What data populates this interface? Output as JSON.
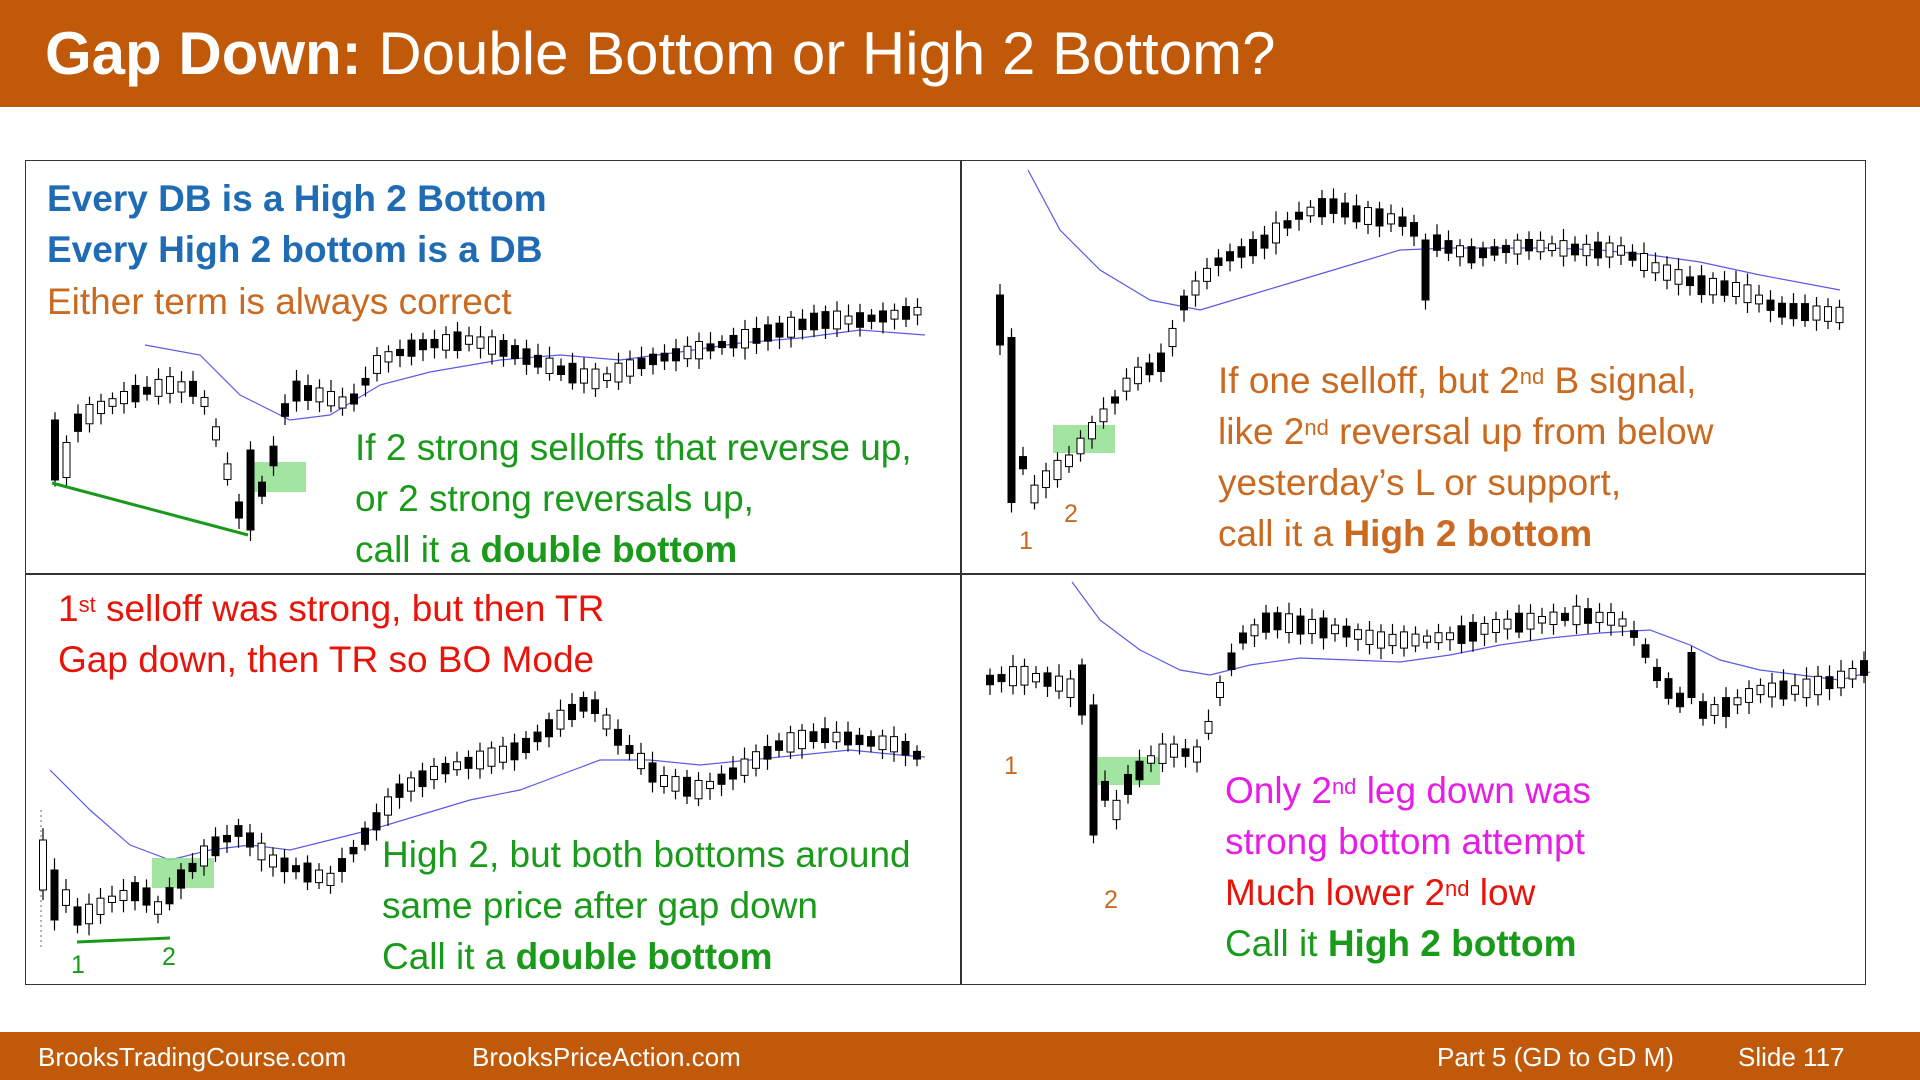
{
  "title": {
    "bold": "Gap Down:",
    "rest": " Double Bottom or High 2 Bottom?"
  },
  "panel_tl": {
    "line1": "Every DB is a High 2 Bottom",
    "line2": "Every High 2 bottom is a DB",
    "line3": "Either term is always correct",
    "c1": "If 2 strong selloffs that reverse up,",
    "c2": "or 2 strong reversals up,",
    "c3_pre": "call it a ",
    "c3_bold": "double bottom"
  },
  "panel_tr": {
    "l1_pre": "If one selloff, but 2",
    "l1_sup": "nd",
    "l1_post": " B signal,",
    "l2_pre": "like 2",
    "l2_sup": "nd",
    "l2_post": " reversal up from below",
    "l3": "yesterday’s L or support,",
    "l4_pre": "call it a ",
    "l4_bold": "High 2 bottom",
    "label1": "1",
    "label2": "2"
  },
  "panel_bl": {
    "r1_pre": "1",
    "r1_sup": "st",
    "r1_post": " selloff was strong, but then TR",
    "r2": "Gap down, then TR so BO Mode",
    "g1": "High 2, but both bottoms around",
    "g2": "same price after gap down",
    "g3_pre": "Call it a ",
    "g3_bold": "double bottom",
    "label1": "1",
    "label2": "2"
  },
  "panel_br": {
    "m1_pre": "Only 2",
    "m1_sup": "nd",
    "m1_post": " leg down was",
    "m2": "strong bottom attempt",
    "r1_pre": "Much lower 2",
    "r1_sup": "nd",
    "r1_post": " low",
    "g1_pre": "Call it ",
    "g1_bold": "High 2 bottom",
    "label1": "1",
    "label2": "2"
  },
  "footer": {
    "site1": "BrooksTradingCourse.com",
    "site2": "BrooksPriceAction.com",
    "part": "Part 5 (GD to GD M)",
    "slide": "Slide  117"
  },
  "colors": {
    "orange_bar": "#c05a0a",
    "blue_text": "#1f6cb4",
    "orange_text": "#c96a20",
    "green_text": "#1a9a1a",
    "red_text": "#e8140a",
    "magenta_text": "#e51de5",
    "ema_line": "#5a5ae6",
    "signal_box": "#90e090"
  }
}
